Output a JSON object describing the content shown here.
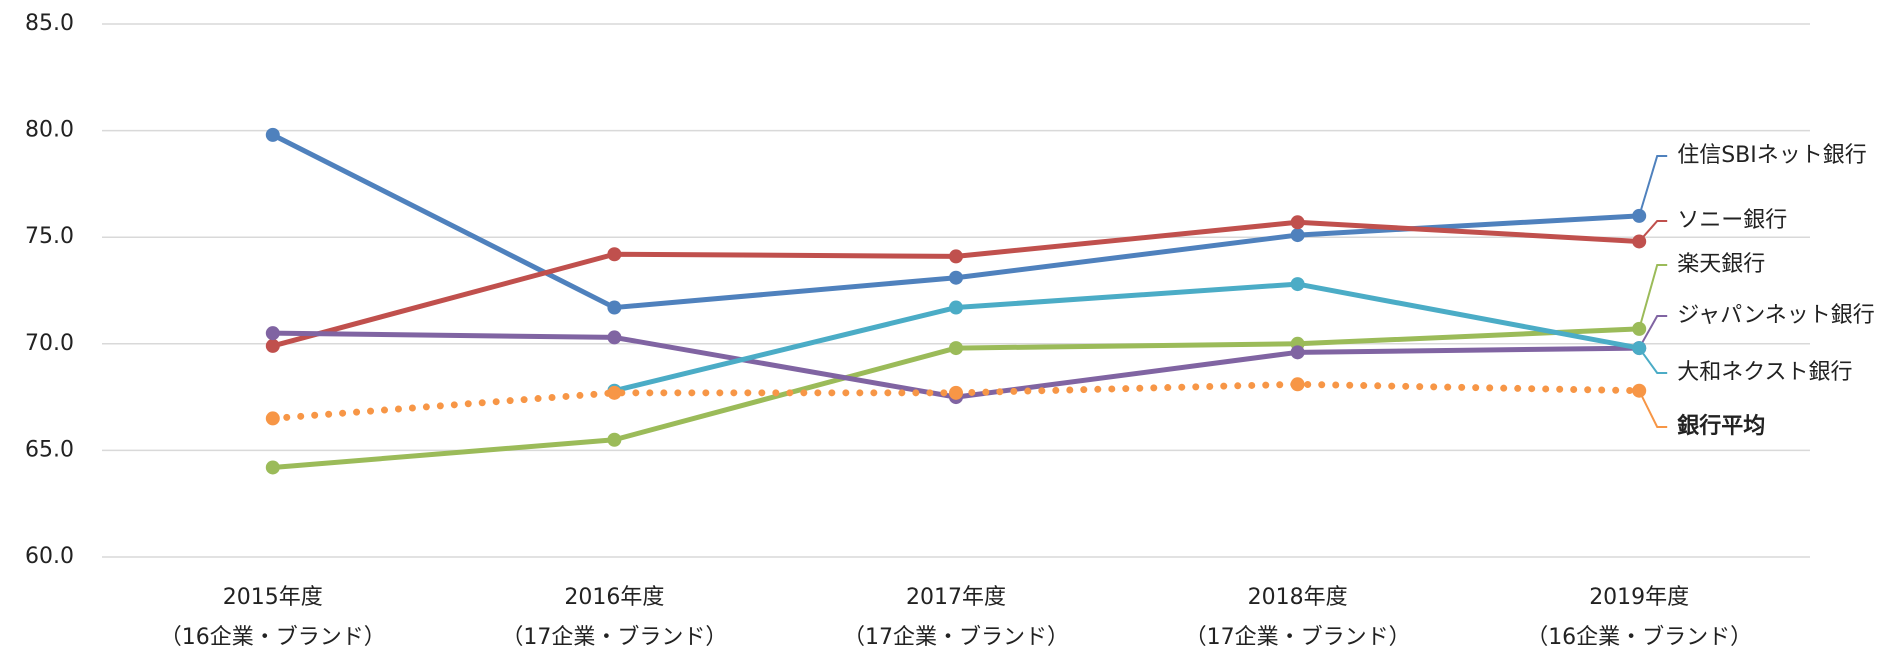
{
  "chart_data": {
    "type": "line",
    "categories": [
      [
        "2015年度",
        "（16企業・ブランド）"
      ],
      [
        "2016年度",
        "（17企業・ブランド）"
      ],
      [
        "2017年度",
        "（17企業・ブランド）"
      ],
      [
        "2018年度",
        "（17企業・ブランド）"
      ],
      [
        "2019年度",
        "（16企業・ブランド）"
      ]
    ],
    "series": [
      {
        "name": "住信SBIネット銀行",
        "color": "#4f81bd",
        "values": [
          79.8,
          71.7,
          73.1,
          75.1,
          76.0
        ]
      },
      {
        "name": "ソニー銀行",
        "color": "#c0504d",
        "values": [
          69.9,
          74.2,
          74.1,
          75.7,
          74.8
        ]
      },
      {
        "name": "楽天銀行",
        "color": "#9bbb59",
        "values": [
          64.2,
          65.5,
          69.8,
          70.0,
          70.7
        ]
      },
      {
        "name": "ジャパンネット銀行",
        "color": "#8064a2",
        "values": [
          70.5,
          70.3,
          67.5,
          69.6,
          69.8
        ]
      },
      {
        "name": "大和ネクスト銀行",
        "color": "#4bacc6",
        "values": [
          null,
          67.8,
          71.7,
          72.8,
          69.8
        ]
      },
      {
        "name": "銀行平均",
        "color": "#f79646",
        "label_color": "#e46c0a",
        "line_style": "dotted",
        "values": [
          66.5,
          67.7,
          67.7,
          68.1,
          67.8
        ]
      }
    ],
    "ylim": [
      60,
      85
    ],
    "yticks": [
      {
        "value": 60,
        "label": "60.0"
      },
      {
        "value": 65,
        "label": "65.0"
      },
      {
        "value": 70,
        "label": "70.0"
      },
      {
        "value": 75,
        "label": "75.0"
      },
      {
        "value": 80,
        "label": "80.0"
      },
      {
        "value": 85,
        "label": "85.0"
      }
    ],
    "grid": true
  }
}
